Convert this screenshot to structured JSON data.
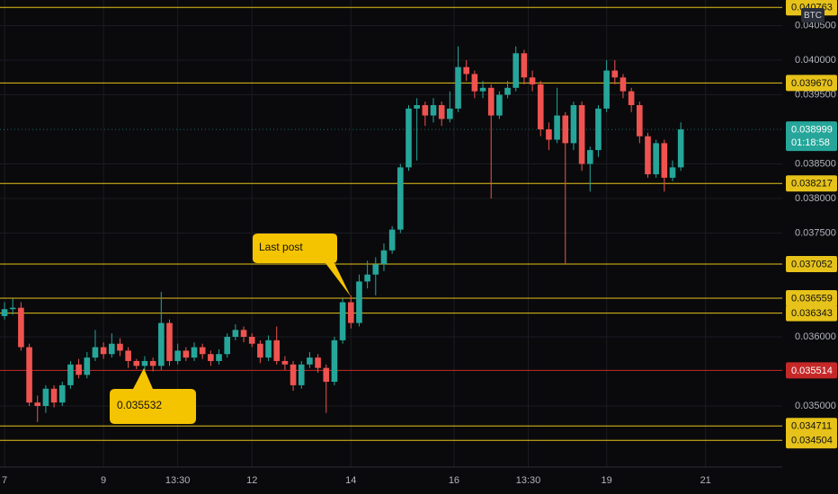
{
  "chart_data": {
    "type": "candlestick",
    "symbol": "BTC",
    "up_color": "#26a69a",
    "down_color": "#ef5350",
    "open": [
      0.0363,
      0.0364,
      0.03642,
      0.03585,
      0.03505,
      0.035,
      0.03525,
      0.03505,
      0.0353,
      0.0356,
      0.03545,
      0.0357,
      0.03585,
      0.03575,
      0.0359,
      0.0358,
      0.03565,
      0.03558,
      0.03565,
      0.03558,
      0.0362,
      0.03565,
      0.0358,
      0.0357,
      0.03585,
      0.03575,
      0.03565,
      0.03575,
      0.036,
      0.0361,
      0.036,
      0.0359,
      0.0357,
      0.03595,
      0.03565,
      0.0356,
      0.0353,
      0.0356,
      0.0357,
      0.03555,
      0.03535,
      0.03595,
      0.0365,
      0.0362,
      0.0368,
      0.0369,
      0.03705,
      0.03725,
      0.03755,
      0.03845,
      0.0393,
      0.03935,
      0.0392,
      0.03935,
      0.03915,
      0.0393,
      0.0399,
      0.0398,
      0.03955,
      0.0396,
      0.0392,
      0.0395,
      0.0396,
      0.0401,
      0.03975,
      0.03965,
      0.039,
      0.03885,
      0.0392,
      0.0388,
      0.03935,
      0.0385,
      0.0387,
      0.0393,
      0.03985,
      0.03975,
      0.03955,
      0.03935,
      0.0389,
      0.03835,
      0.0388,
      0.0383,
      0.03845
    ],
    "high": [
      0.0365,
      0.03655,
      0.0365,
      0.0359,
      0.03515,
      0.0353,
      0.0353,
      0.03535,
      0.03565,
      0.03568,
      0.03578,
      0.0361,
      0.03592,
      0.03605,
      0.03598,
      0.03585,
      0.03568,
      0.03572,
      0.0357,
      0.03665,
      0.03625,
      0.0359,
      0.03585,
      0.03592,
      0.0359,
      0.0358,
      0.03582,
      0.03605,
      0.03618,
      0.03615,
      0.03605,
      0.03595,
      0.03602,
      0.03615,
      0.03572,
      0.03565,
      0.03565,
      0.03578,
      0.03575,
      0.0356,
      0.036,
      0.03655,
      0.0366,
      0.0369,
      0.0371,
      0.03715,
      0.03735,
      0.0376,
      0.0385,
      0.03935,
      0.03945,
      0.0394,
      0.03945,
      0.0394,
      0.03955,
      0.0402,
      0.04,
      0.03985,
      0.0397,
      0.03965,
      0.03955,
      0.0397,
      0.0402,
      0.04015,
      0.03985,
      0.0397,
      0.0391,
      0.0396,
      0.03925,
      0.0394,
      0.0394,
      0.03875,
      0.03935,
      0.04,
      0.04,
      0.0398,
      0.0396,
      0.0394,
      0.03895,
      0.03885,
      0.03885,
      0.03855,
      0.0391
    ],
    "low": [
      0.03625,
      0.03632,
      0.0358,
      0.035,
      0.03477,
      0.0349,
      0.03498,
      0.035,
      0.03525,
      0.0354,
      0.0354,
      0.03565,
      0.03568,
      0.0357,
      0.03572,
      0.03555,
      0.035532,
      0.03552,
      0.0355,
      0.03552,
      0.03558,
      0.0356,
      0.03565,
      0.03565,
      0.03568,
      0.03558,
      0.0356,
      0.0357,
      0.03595,
      0.03592,
      0.03585,
      0.03562,
      0.03565,
      0.0356,
      0.03552,
      0.03522,
      0.03525,
      0.03555,
      0.03548,
      0.0349,
      0.0353,
      0.0359,
      0.03612,
      0.03615,
      0.0367,
      0.0366,
      0.03695,
      0.0372,
      0.0375,
      0.0384,
      0.03855,
      0.03905,
      0.0391,
      0.03905,
      0.0391,
      0.03925,
      0.0397,
      0.03945,
      0.03945,
      0.038,
      0.03915,
      0.03945,
      0.03955,
      0.03965,
      0.03955,
      0.0389,
      0.0387,
      0.0388,
      0.03705,
      0.0387,
      0.0384,
      0.0381,
      0.0386,
      0.03925,
      0.03965,
      0.03945,
      0.03925,
      0.0388,
      0.0383,
      0.0383,
      0.0381,
      0.03825,
      0.0384
    ],
    "close": [
      0.0364,
      0.03642,
      0.03585,
      0.03505,
      0.035,
      0.03525,
      0.03505,
      0.0353,
      0.0356,
      0.03545,
      0.0357,
      0.03585,
      0.03575,
      0.0359,
      0.0358,
      0.03565,
      0.03558,
      0.03565,
      0.03558,
      0.0362,
      0.03565,
      0.0358,
      0.0357,
      0.03585,
      0.03575,
      0.03565,
      0.03575,
      0.036,
      0.0361,
      0.036,
      0.0359,
      0.0357,
      0.03595,
      0.03565,
      0.0356,
      0.0353,
      0.0356,
      0.0357,
      0.03555,
      0.03535,
      0.03595,
      0.0365,
      0.0362,
      0.0368,
      0.0369,
      0.03705,
      0.03725,
      0.03755,
      0.03845,
      0.0393,
      0.03935,
      0.0392,
      0.03935,
      0.03915,
      0.0393,
      0.0399,
      0.0398,
      0.03955,
      0.0396,
      0.0392,
      0.0395,
      0.0396,
      0.0401,
      0.03975,
      0.03965,
      0.039,
      0.03885,
      0.0392,
      0.0388,
      0.03935,
      0.0385,
      0.0387,
      0.0393,
      0.03985,
      0.03975,
      0.03955,
      0.03935,
      0.0389,
      0.03835,
      0.0388,
      0.0383,
      0.03845,
      0.038999
    ],
    "xlim": [
      -0.55,
      94.3
    ],
    "xticks": [
      {
        "value": 0,
        "label": "7"
      },
      {
        "value": 12,
        "label": "9"
      },
      {
        "value": 21,
        "label": "13:30"
      },
      {
        "value": 30,
        "label": "12"
      },
      {
        "value": 42,
        "label": "14"
      },
      {
        "value": 54.5,
        "label": "16"
      },
      {
        "value": 63.5,
        "label": "13:30"
      },
      {
        "value": 73,
        "label": "19"
      },
      {
        "value": 85,
        "label": "21"
      }
    ],
    "ylim": [
      0.034117,
      0.04087
    ],
    "yticks": [
      {
        "value": 0.0405,
        "label": "0.040500"
      },
      {
        "value": 0.04,
        "label": "0.040000"
      },
      {
        "value": 0.0395,
        "label": "0.039500"
      },
      {
        "value": 0.0385,
        "label": "0.038500"
      },
      {
        "value": 0.038,
        "label": "0.038000"
      },
      {
        "value": 0.0375,
        "label": "0.037500"
      },
      {
        "value": 0.036,
        "label": "0.036000"
      },
      {
        "value": 0.035,
        "label": "0.035000"
      }
    ],
    "grid": true,
    "levels": [
      {
        "value": 0.040763,
        "label": "0.040763",
        "color": "#e6c21a"
      },
      {
        "value": 0.03967,
        "label": "0.039670",
        "color": "#e6c21a"
      },
      {
        "value": 0.038217,
        "label": "0.038217",
        "color": "#e6c21a"
      },
      {
        "value": 0.037052,
        "label": "0.037052",
        "color": "#e6c21a"
      },
      {
        "value": 0.036559,
        "label": "0.036559",
        "color": "#e6c21a"
      },
      {
        "value": 0.036343,
        "label": "0.036343",
        "color": "#e6c21a"
      },
      {
        "value": 0.035514,
        "label": "0.035514",
        "color": "#c62828"
      },
      {
        "value": 0.034711,
        "label": "0.034711",
        "color": "#e6c21a"
      },
      {
        "value": 0.034504,
        "label": "0.034504",
        "color": "#e6c21a"
      }
    ],
    "last_price": 0.038999,
    "countdown": "01:18:58",
    "annotations": [
      "Last post",
      "0.035532"
    ]
  }
}
